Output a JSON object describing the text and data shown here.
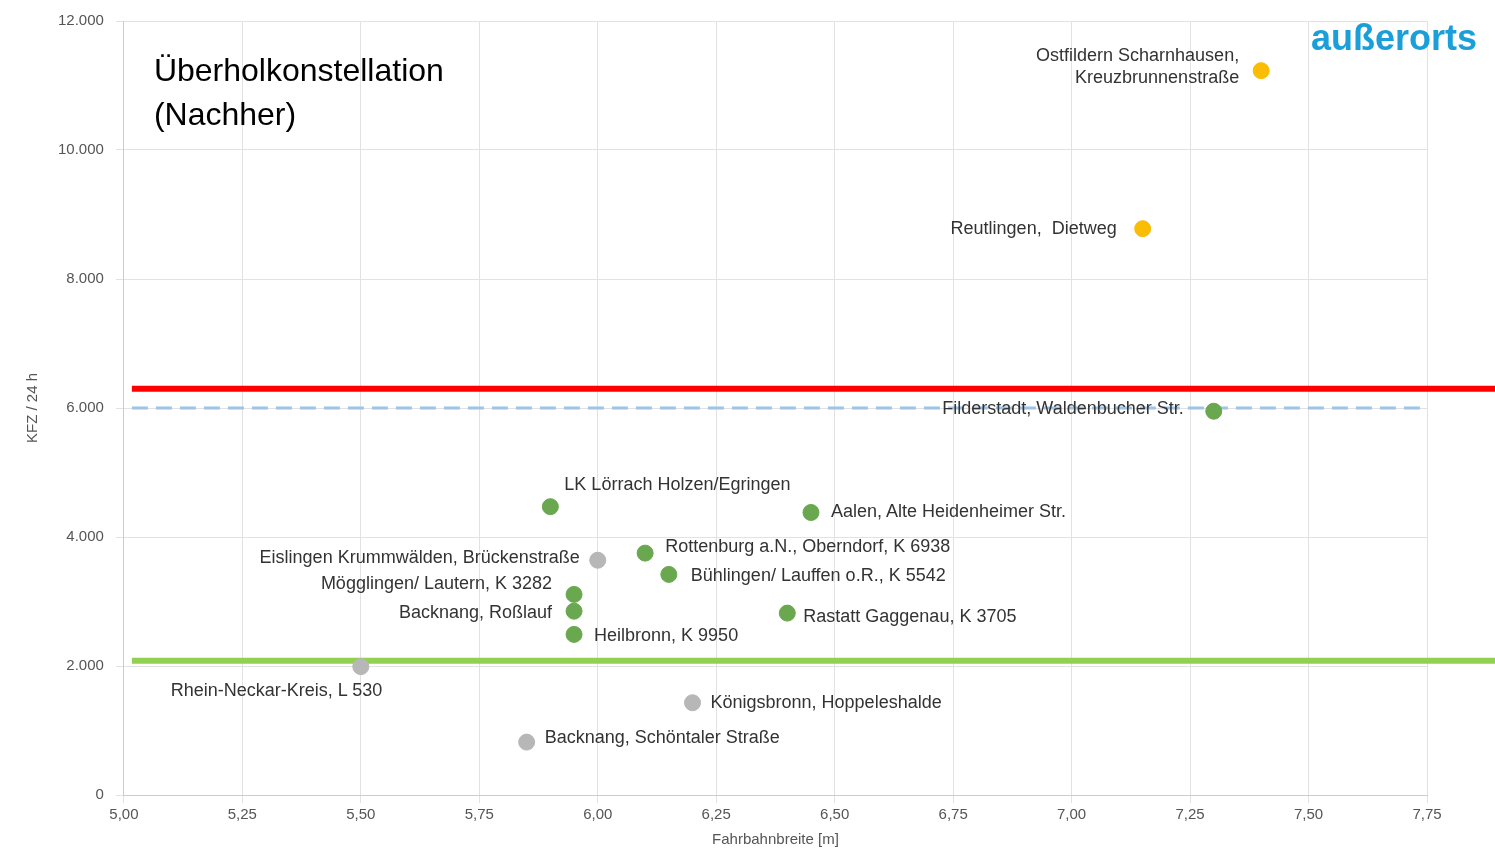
{
  "chart_data": {
    "type": "scatter",
    "title": "Überholkonstellation (Nachher)",
    "xlabel": "Fahrbahnbreite [m]",
    "ylabel": "KFZ / 24 h",
    "xlim": [
      5,
      7.75
    ],
    "xticks": [
      {
        "value": 5,
        "label": "5,00"
      },
      {
        "value": 5.25,
        "label": "5,25"
      },
      {
        "value": 5.5,
        "label": "5,50"
      },
      {
        "value": 5.75,
        "label": "5,75"
      },
      {
        "value": 6,
        "label": "6,00"
      },
      {
        "value": 6.25,
        "label": "6,25"
      },
      {
        "value": 6.5,
        "label": "6,50"
      },
      {
        "value": 6.75,
        "label": "6,75"
      },
      {
        "value": 7,
        "label": "7,00"
      },
      {
        "value": 7.25,
        "label": "7,25"
      },
      {
        "value": 7.5,
        "label": "7,50"
      },
      {
        "value": 7.75,
        "label": "7,75"
      }
    ],
    "ylim": [
      0,
      12000
    ],
    "yticks": [
      0,
      {
        "value": 2000,
        "label": "2.000"
      },
      {
        "value": 4000,
        "label": "4.000"
      },
      {
        "value": 6000,
        "label": "6.000"
      },
      {
        "value": 8000,
        "label": "8.000"
      },
      {
        "value": 10000,
        "label": "10.000"
      },
      {
        "value": 12000,
        "label": "12.000"
      }
    ],
    "grid": true,
    "marker": "circle",
    "series": [
      {
        "color": "#fbbc04",
        "x": [
          7.4,
          7.15
        ],
        "values": [
          11230,
          8780
        ]
      },
      {
        "color": "#6aa84f",
        "x": [
          7.3,
          5.9,
          6.45,
          6.1,
          6.15,
          5.95,
          5.95,
          5.95,
          6.4
        ],
        "values": [
          5950,
          4470,
          4380,
          3750,
          3420,
          3110,
          2850,
          2490,
          2820
        ]
      },
      {
        "color": "#b7b7b7",
        "x": [
          6.0,
          5.5,
          6.2,
          5.85
        ],
        "values": [
          3640,
          1990,
          1430,
          820
        ]
      }
    ],
    "ref_lines": [
      {
        "axis": "y",
        "value": 6300,
        "color": "#ff0000"
      },
      {
        "axis": "y",
        "value": 2080,
        "color": "#92d050"
      },
      {
        "axis": "y",
        "value": 6000,
        "color": "#9dc3e6",
        "line_style": "dashed"
      }
    ],
    "annotations": [
      "außerorts",
      {
        "text": "Ostfildern Scharnhausen,\nKreuzbrunnenstraße",
        "x": 7.4,
        "y": 11230
      },
      {
        "text": "Reutlingen,  Dietweg",
        "x": 7.15,
        "y": 8780
      },
      {
        "text": "Filderstadt, Waldenbucher Str.",
        "x": 7.3,
        "y": 5950
      },
      {
        "text": "LK Lörrach Holzen/Egringen",
        "x": 5.9,
        "y": 4470
      },
      {
        "text": "Aalen, Alte Heidenheimer Str.",
        "x": 6.45,
        "y": 4380
      },
      {
        "text": "Eislingen Krummwälden, Brückenstraße",
        "x": 6.0,
        "y": 3640
      },
      {
        "text": "Rottenburg a.N., Oberndorf, K 6938",
        "x": 6.1,
        "y": 3750
      },
      {
        "text": "Bühlingen/ Lauffen o.R., K 5542",
        "x": 6.15,
        "y": 3420
      },
      {
        "text": "Mögglingen/ Lautern, K 3282",
        "x": 5.95,
        "y": 3110
      },
      {
        "text": "Backnang, Roßlauf",
        "x": 5.95,
        "y": 2850
      },
      {
        "text": "Heilbronn, K 9950",
        "x": 5.95,
        "y": 2490
      },
      {
        "text": "Rastatt Gaggenau, K 3705",
        "x": 6.4,
        "y": 2820
      },
      {
        "text": "Rhein-Neckar-Kreis, L 530",
        "x": 5.5,
        "y": 1990
      },
      {
        "text": "Königsbronn, Hoppeleshalde",
        "x": 6.2,
        "y": 1430
      },
      {
        "text": "Backnang, Schöntaler Straße",
        "x": 5.85,
        "y": 820
      }
    ]
  }
}
